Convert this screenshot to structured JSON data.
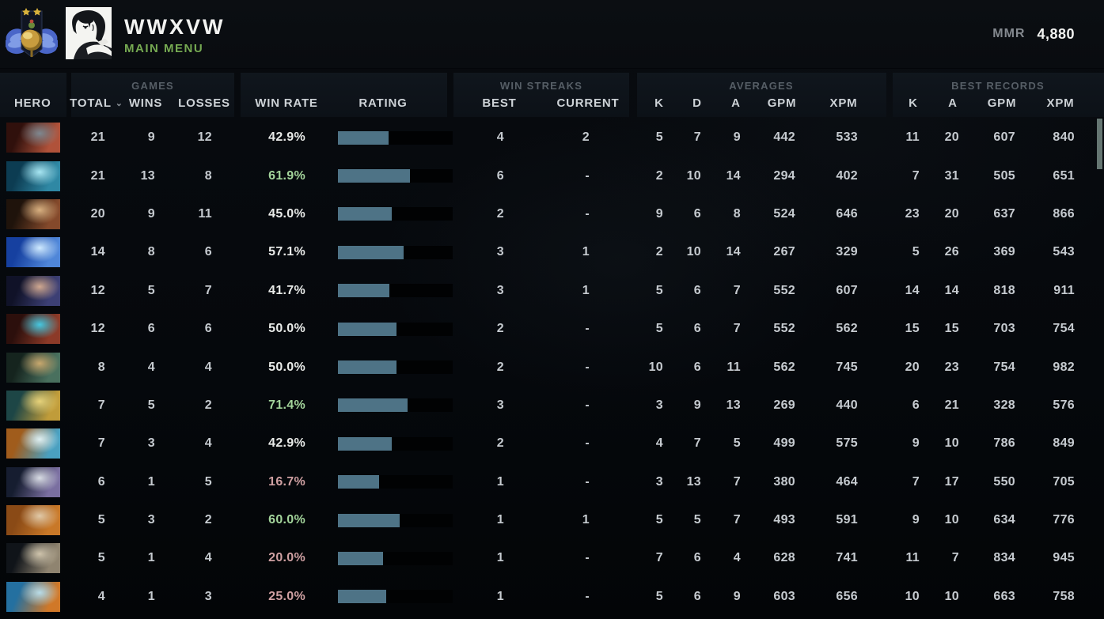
{
  "topbar": {
    "player_name": "WWXVW",
    "nav_label": "MAIN MENU",
    "mmr_label": "MMR",
    "mmr_value": "4,880"
  },
  "colors": {
    "nav_green": "#76aa52",
    "win_rate_high": "#a3d49b",
    "win_rate_mid": "#e8eae8",
    "win_rate_low": "#cfa0a2",
    "rating_bar_fill": "#4e7386",
    "rating_bar_track": "#000000",
    "scrollbar_thumb": "#657672"
  },
  "table": {
    "groups": {
      "games": "GAMES",
      "win_streaks": "WIN STREAKS",
      "averages": "AVERAGES",
      "best_records": "BEST RECORDS"
    },
    "columns": {
      "hero": "HERO",
      "total": "TOTAL",
      "wins": "WINS",
      "losses": "LOSSES",
      "win_rate": "WIN RATE",
      "rating": "RATING",
      "best": "BEST",
      "current": "CURRENT",
      "k": "K",
      "d": "D",
      "a": "A",
      "gpm": "GPM",
      "xpm": "XPM",
      "rk": "K",
      "ra": "A",
      "rgpm": "GPM",
      "rxpm": "XPM"
    },
    "sorted_by": "total",
    "rows": [
      {
        "hero": "axe",
        "colors": [
          "#30100c",
          "#b0523a",
          "#7e8890"
        ],
        "total": "21",
        "wins": "9",
        "losses": "12",
        "win_rate": "42.9%",
        "wr_level": "mid",
        "rating_fill_pct": 44,
        "best": "4",
        "current": "2",
        "k": "5",
        "d": "7",
        "a": "9",
        "gpm": "442",
        "xpm": "533",
        "rk": "11",
        "ra": "20",
        "rgpm": "607",
        "rxpm": "840"
      },
      {
        "hero": "winter-wyvern",
        "colors": [
          "#0c3c52",
          "#2f88a4",
          "#a8e6f2"
        ],
        "total": "21",
        "wins": "13",
        "losses": "8",
        "win_rate": "61.9%",
        "wr_level": "high",
        "rating_fill_pct": 63,
        "best": "6",
        "current": "-",
        "k": "2",
        "d": "10",
        "a": "14",
        "gpm": "294",
        "xpm": "402",
        "rk": "7",
        "ra": "31",
        "rgpm": "505",
        "rxpm": "651"
      },
      {
        "hero": "ursa",
        "colors": [
          "#1f130b",
          "#84492b",
          "#d8b080"
        ],
        "total": "20",
        "wins": "9",
        "losses": "11",
        "win_rate": "45.0%",
        "wr_level": "mid",
        "rating_fill_pct": 47,
        "best": "2",
        "current": "-",
        "k": "9",
        "d": "6",
        "a": "8",
        "gpm": "524",
        "xpm": "646",
        "rk": "23",
        "ra": "20",
        "rgpm": "637",
        "rxpm": "866"
      },
      {
        "hero": "ancient-apparition",
        "colors": [
          "#1640a0",
          "#4f86d8",
          "#cfeaff"
        ],
        "total": "14",
        "wins": "8",
        "losses": "6",
        "win_rate": "57.1%",
        "wr_level": "mid",
        "rating_fill_pct": 57,
        "best": "3",
        "current": "1",
        "k": "2",
        "d": "10",
        "a": "14",
        "gpm": "267",
        "xpm": "329",
        "rk": "5",
        "ra": "26",
        "rgpm": "369",
        "rxpm": "543"
      },
      {
        "hero": "luna",
        "colors": [
          "#101228",
          "#3c3f74",
          "#d0a890"
        ],
        "total": "12",
        "wins": "5",
        "losses": "7",
        "win_rate": "41.7%",
        "wr_level": "mid",
        "rating_fill_pct": 45,
        "best": "3",
        "current": "1",
        "k": "5",
        "d": "6",
        "a": "7",
        "gpm": "552",
        "xpm": "607",
        "rk": "14",
        "ra": "14",
        "rgpm": "818",
        "rxpm": "911"
      },
      {
        "hero": "terrorblade",
        "colors": [
          "#2c0f0c",
          "#8c3a28",
          "#46c8e0"
        ],
        "total": "12",
        "wins": "6",
        "losses": "6",
        "win_rate": "50.0%",
        "wr_level": "mid",
        "rating_fill_pct": 51,
        "best": "2",
        "current": "-",
        "k": "5",
        "d": "6",
        "a": "7",
        "gpm": "552",
        "xpm": "562",
        "rk": "15",
        "ra": "15",
        "rgpm": "703",
        "rxpm": "754"
      },
      {
        "hero": "slark",
        "colors": [
          "#15241e",
          "#49705e",
          "#c8a86e"
        ],
        "total": "8",
        "wins": "4",
        "losses": "4",
        "win_rate": "50.0%",
        "wr_level": "mid",
        "rating_fill_pct": 51,
        "best": "2",
        "current": "-",
        "k": "10",
        "d": "6",
        "a": "11",
        "gpm": "562",
        "xpm": "745",
        "rk": "20",
        "ra": "23",
        "rgpm": "754",
        "rxpm": "982"
      },
      {
        "hero": "sand-king",
        "colors": [
          "#1d4646",
          "#c09c3a",
          "#e6d27a"
        ],
        "total": "7",
        "wins": "5",
        "losses": "2",
        "win_rate": "71.4%",
        "wr_level": "high",
        "rating_fill_pct": 61,
        "best": "3",
        "current": "-",
        "k": "3",
        "d": "9",
        "a": "13",
        "gpm": "269",
        "xpm": "440",
        "rk": "6",
        "ra": "21",
        "rgpm": "328",
        "rxpm": "576"
      },
      {
        "hero": "phantom-lancer",
        "colors": [
          "#a05c1c",
          "#4aa0c0",
          "#dff0f2"
        ],
        "total": "7",
        "wins": "3",
        "losses": "4",
        "win_rate": "42.9%",
        "wr_level": "mid",
        "rating_fill_pct": 47,
        "best": "2",
        "current": "-",
        "k": "4",
        "d": "7",
        "a": "5",
        "gpm": "499",
        "xpm": "575",
        "rk": "9",
        "ra": "10",
        "rgpm": "786",
        "rxpm": "849"
      },
      {
        "hero": "drow-ranger",
        "colors": [
          "#161d30",
          "#7a6fa0",
          "#d8dce4"
        ],
        "total": "6",
        "wins": "1",
        "losses": "5",
        "win_rate": "16.7%",
        "wr_level": "low",
        "rating_fill_pct": 36,
        "best": "1",
        "current": "-",
        "k": "3",
        "d": "13",
        "a": "7",
        "gpm": "380",
        "xpm": "464",
        "rk": "7",
        "ra": "17",
        "rgpm": "550",
        "rxpm": "705"
      },
      {
        "hero": "bristleback",
        "colors": [
          "#8a4a16",
          "#c87828",
          "#e0c9a8"
        ],
        "total": "5",
        "wins": "3",
        "losses": "2",
        "win_rate": "60.0%",
        "wr_level": "high",
        "rating_fill_pct": 54,
        "best": "1",
        "current": "1",
        "k": "5",
        "d": "5",
        "a": "7",
        "gpm": "493",
        "xpm": "591",
        "rk": "9",
        "ra": "10",
        "rgpm": "634",
        "rxpm": "776"
      },
      {
        "hero": "sven",
        "colors": [
          "#101419",
          "#8f8470",
          "#cfc4ac"
        ],
        "total": "5",
        "wins": "1",
        "losses": "4",
        "win_rate": "20.0%",
        "wr_level": "low",
        "rating_fill_pct": 39,
        "best": "1",
        "current": "-",
        "k": "7",
        "d": "6",
        "a": "4",
        "gpm": "628",
        "xpm": "741",
        "rk": "11",
        "ra": "7",
        "rgpm": "834",
        "rxpm": "945"
      },
      {
        "hero": "naga-siren",
        "colors": [
          "#2470a0",
          "#d07828",
          "#b8dce8"
        ],
        "total": "4",
        "wins": "1",
        "losses": "3",
        "win_rate": "25.0%",
        "wr_level": "low",
        "rating_fill_pct": 42,
        "best": "1",
        "current": "-",
        "k": "5",
        "d": "6",
        "a": "9",
        "gpm": "603",
        "xpm": "656",
        "rk": "10",
        "ra": "10",
        "rgpm": "663",
        "rxpm": "758"
      }
    ]
  }
}
